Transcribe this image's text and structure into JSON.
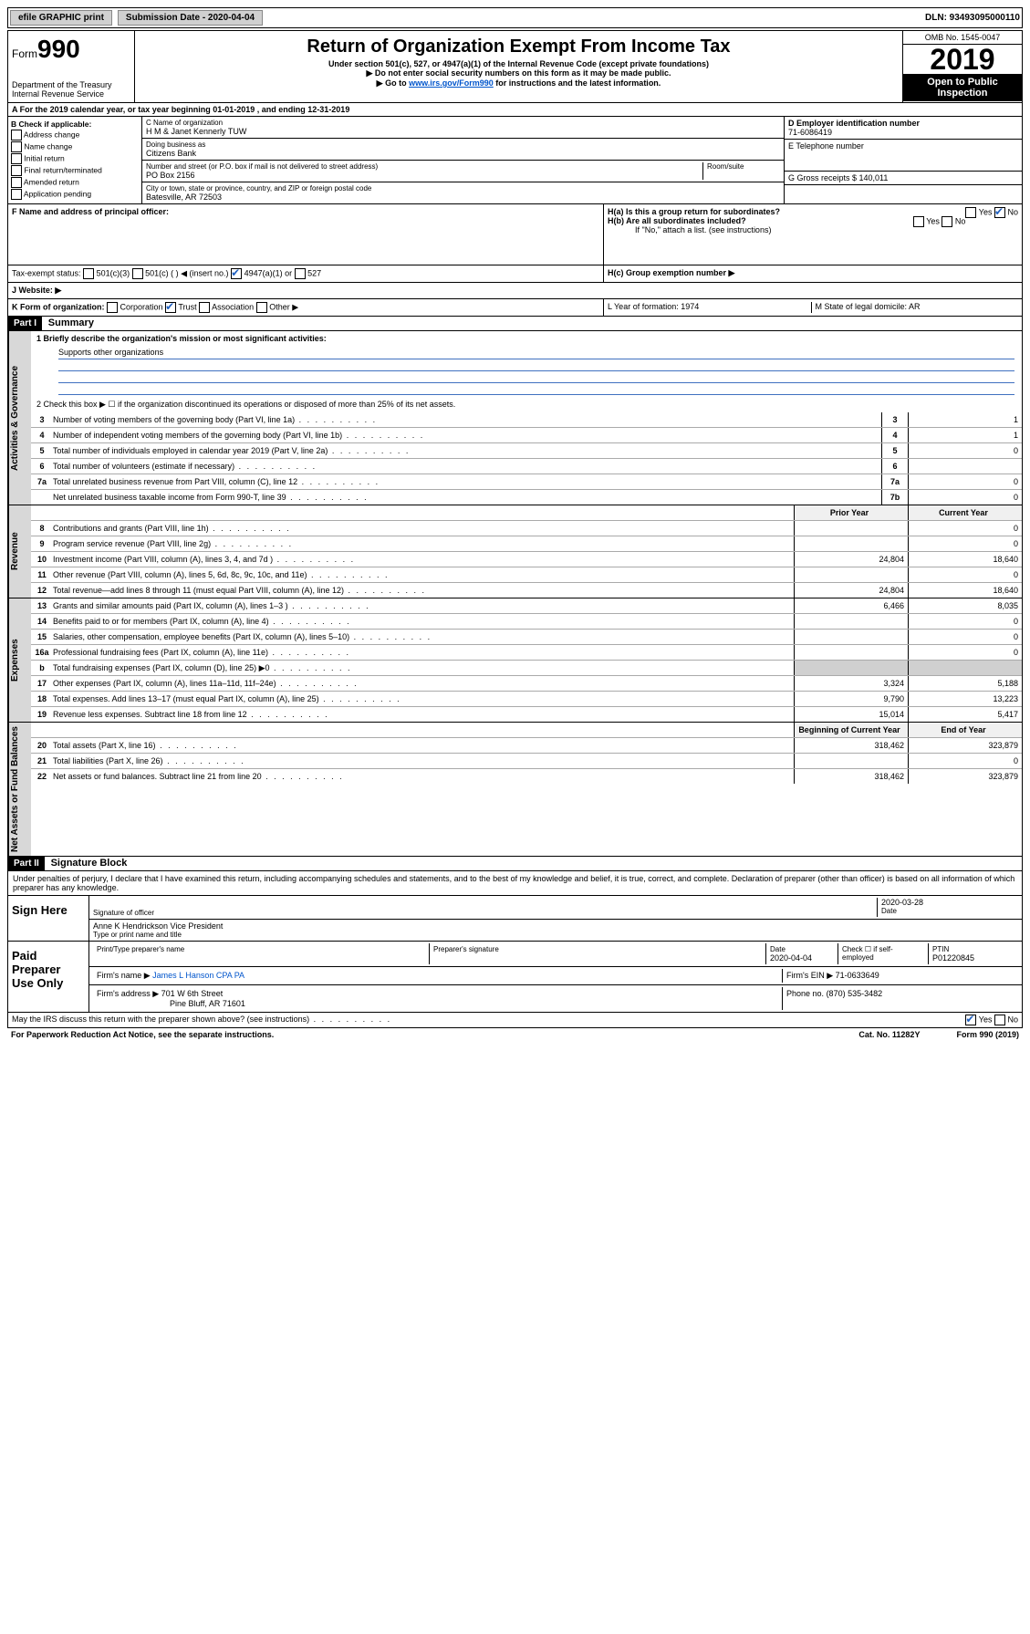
{
  "top": {
    "efile": "efile GRAPHIC print",
    "submission_label": "Submission Date - 2020-04-04",
    "dln": "DLN: 93493095000110"
  },
  "header": {
    "form_prefix": "Form",
    "form_num": "990",
    "dept": "Department of the Treasury",
    "irs": "Internal Revenue Service",
    "title": "Return of Organization Exempt From Income Tax",
    "subtitle": "Under section 501(c), 527, or 4947(a)(1) of the Internal Revenue Code (except private foundations)",
    "note1": "▶ Do not enter social security numbers on this form as it may be made public.",
    "note2_pre": "▶ Go to ",
    "note2_link": "www.irs.gov/Form990",
    "note2_post": " for instructions and the latest information.",
    "omb": "OMB No. 1545-0047",
    "year": "2019",
    "inspection": "Open to Public Inspection"
  },
  "period": "A For the 2019 calendar year, or tax year beginning 01-01-2019   , and ending 12-31-2019",
  "boxB": {
    "label": "B Check if applicable:",
    "items": [
      "Address change",
      "Name change",
      "Initial return",
      "Final return/terminated",
      "Amended return",
      "Application pending"
    ]
  },
  "boxC": {
    "name_label": "C Name of organization",
    "name": "H M & Janet Kennerly TUW",
    "dba_label": "Doing business as",
    "dba": "Citizens Bank",
    "addr_label": "Number and street (or P.O. box if mail is not delivered to street address)",
    "room_label": "Room/suite",
    "addr": "PO Box 2156",
    "city_label": "City or town, state or province, country, and ZIP or foreign postal code",
    "city": "Batesville, AR  72503"
  },
  "boxD": {
    "label": "D Employer identification number",
    "value": "71-6086419"
  },
  "boxE": "E Telephone number",
  "boxG": "G Gross receipts $ 140,011",
  "boxF": "F  Name and address of principal officer:",
  "boxH": {
    "ha": "H(a)  Is this a group return for subordinates?",
    "ha_no": "No",
    "hb": "H(b)  Are all subordinates included?",
    "hb_note": "If \"No,\" attach a list. (see instructions)",
    "hc": "H(c)  Group exemption number ▶"
  },
  "taxExempt": {
    "label": "Tax-exempt status:",
    "opt1": "501(c)(3)",
    "opt2": "501(c) (  ) ◀ (insert no.)",
    "opt3": "4947(a)(1) or",
    "opt4": "527"
  },
  "boxJ": "J   Website: ▶",
  "boxK": {
    "label": "K Form of organization:",
    "corp": "Corporation",
    "trust": "Trust",
    "assoc": "Association",
    "other": "Other ▶"
  },
  "boxL": "L Year of formation: 1974",
  "boxM": "M State of legal domicile: AR",
  "partI": {
    "header": "Part I",
    "title": "Summary",
    "q1": "1  Briefly describe the organization's mission or most significant activities:",
    "mission": "Supports other organizations",
    "q2": "2  Check this box ▶ ☐  if the organization discontinued its operations or disposed of more than 25% of its net assets."
  },
  "governance_rows": [
    {
      "n": "3",
      "d": "Number of voting members of the governing body (Part VI, line 1a)",
      "box": "3",
      "v": "1"
    },
    {
      "n": "4",
      "d": "Number of independent voting members of the governing body (Part VI, line 1b)",
      "box": "4",
      "v": "1"
    },
    {
      "n": "5",
      "d": "Total number of individuals employed in calendar year 2019 (Part V, line 2a)",
      "box": "5",
      "v": "0"
    },
    {
      "n": "6",
      "d": "Total number of volunteers (estimate if necessary)",
      "box": "6",
      "v": ""
    },
    {
      "n": "7a",
      "d": "Total unrelated business revenue from Part VIII, column (C), line 12",
      "box": "7a",
      "v": "0"
    },
    {
      "n": "",
      "d": "Net unrelated business taxable income from Form 990-T, line 39",
      "box": "7b",
      "v": "0"
    }
  ],
  "col_headers": {
    "prior": "Prior Year",
    "current": "Current Year"
  },
  "revenue_rows": [
    {
      "n": "8",
      "d": "Contributions and grants (Part VIII, line 1h)",
      "p": "",
      "c": "0"
    },
    {
      "n": "9",
      "d": "Program service revenue (Part VIII, line 2g)",
      "p": "",
      "c": "0"
    },
    {
      "n": "10",
      "d": "Investment income (Part VIII, column (A), lines 3, 4, and 7d )",
      "p": "24,804",
      "c": "18,640"
    },
    {
      "n": "11",
      "d": "Other revenue (Part VIII, column (A), lines 5, 6d, 8c, 9c, 10c, and 11e)",
      "p": "",
      "c": "0"
    },
    {
      "n": "12",
      "d": "Total revenue—add lines 8 through 11 (must equal Part VIII, column (A), line 12)",
      "p": "24,804",
      "c": "18,640"
    }
  ],
  "expense_rows": [
    {
      "n": "13",
      "d": "Grants and similar amounts paid (Part IX, column (A), lines 1–3 )",
      "p": "6,466",
      "c": "8,035"
    },
    {
      "n": "14",
      "d": "Benefits paid to or for members (Part IX, column (A), line 4)",
      "p": "",
      "c": "0"
    },
    {
      "n": "15",
      "d": "Salaries, other compensation, employee benefits (Part IX, column (A), lines 5–10)",
      "p": "",
      "c": "0"
    },
    {
      "n": "16a",
      "d": "Professional fundraising fees (Part IX, column (A), line 11e)",
      "p": "",
      "c": "0"
    },
    {
      "n": "b",
      "d": "Total fundraising expenses (Part IX, column (D), line 25) ▶0",
      "p": "grey",
      "c": "grey"
    },
    {
      "n": "17",
      "d": "Other expenses (Part IX, column (A), lines 11a–11d, 11f–24e)",
      "p": "3,324",
      "c": "5,188"
    },
    {
      "n": "18",
      "d": "Total expenses. Add lines 13–17 (must equal Part IX, column (A), line 25)",
      "p": "9,790",
      "c": "13,223"
    },
    {
      "n": "19",
      "d": "Revenue less expenses. Subtract line 18 from line 12",
      "p": "15,014",
      "c": "5,417"
    }
  ],
  "net_headers": {
    "begin": "Beginning of Current Year",
    "end": "End of Year"
  },
  "net_rows": [
    {
      "n": "20",
      "d": "Total assets (Part X, line 16)",
      "p": "318,462",
      "c": "323,879"
    },
    {
      "n": "21",
      "d": "Total liabilities (Part X, line 26)",
      "p": "",
      "c": "0"
    },
    {
      "n": "22",
      "d": "Net assets or fund balances. Subtract line 21 from line 20",
      "p": "318,462",
      "c": "323,879"
    }
  ],
  "vtabs": {
    "gov": "Activities & Governance",
    "rev": "Revenue",
    "exp": "Expenses",
    "net": "Net Assets or Fund Balances"
  },
  "partII": {
    "header": "Part II",
    "title": "Signature Block",
    "intro": "Under penalties of perjury, I declare that I have examined this return, including accompanying schedules and statements, and to the best of my knowledge and belief, it is true, correct, and complete. Declaration of preparer (other than officer) is based on all information of which preparer has any knowledge.",
    "sign_here": "Sign Here",
    "sig_officer": "Signature of officer",
    "date": "2020-03-28",
    "date_label": "Date",
    "name": "Anne K Hendrickson  Vice President",
    "name_label": "Type or print name and title",
    "paid": "Paid Preparer Use Only",
    "prep_name_label": "Print/Type preparer's name",
    "prep_sig_label": "Preparer's signature",
    "prep_date": "2020-04-04",
    "check_self": "Check ☐ if self-employed",
    "ptin_label": "PTIN",
    "ptin": "P01220845",
    "firm_name_label": "Firm's name    ▶",
    "firm_name": "James L Hanson CPA PA",
    "firm_ein_label": "Firm's EIN ▶",
    "firm_ein": "71-0633649",
    "firm_addr_label": "Firm's address ▶",
    "firm_addr1": "701 W 6th Street",
    "firm_addr2": "Pine Bluff, AR  71601",
    "phone_label": "Phone no.",
    "phone": "(870) 535-3482",
    "discuss": "May the IRS discuss this return with the preparer shown above? (see instructions)",
    "yes": "Yes",
    "no": "No"
  },
  "footer": {
    "paperwork": "For Paperwork Reduction Act Notice, see the separate instructions.",
    "cat": "Cat. No. 11282Y",
    "form": "Form 990 (2019)"
  }
}
